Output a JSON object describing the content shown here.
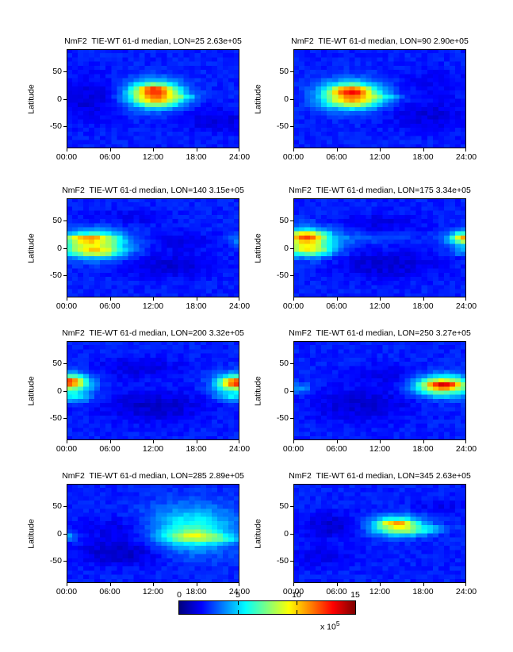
{
  "figure": {
    "background": "#ffffff",
    "colormap": "jet"
  },
  "axes": {
    "ylabel": "Latitude",
    "yticks": [
      {
        "label": "50",
        "lat": 50
      },
      {
        "label": "0",
        "lat": 0
      },
      {
        "label": "-50",
        "lat": -50
      }
    ],
    "xticks": [
      {
        "label": "00:00",
        "hour": 0
      },
      {
        "label": "06:00",
        "hour": 6
      },
      {
        "label": "12:00",
        "hour": 12
      },
      {
        "label": "18:00",
        "hour": 18
      },
      {
        "label": "24:00",
        "hour": 24
      }
    ],
    "xlim_hours": [
      0,
      24
    ],
    "ylim_lat": [
      -90,
      90
    ],
    "grid": false
  },
  "colorbar": {
    "orientation": "horizontal",
    "ticks": [
      {
        "label": "0",
        "value": 0
      },
      {
        "label": "5",
        "value": 5
      },
      {
        "label": "10",
        "value": 10
      },
      {
        "label": "15",
        "value": 15
      }
    ],
    "min": 0,
    "max": 15,
    "multiplier": "x 10",
    "exponent": "5"
  },
  "chart_data": [
    {
      "type": "heatmap",
      "title": "NmF2  TIE-WT 61-d median, LON=25 2.63e+05",
      "lon_deg": 25,
      "title_value": "2.63e+05",
      "x_hours": [
        0,
        24
      ],
      "lat_range": [
        -90,
        90
      ],
      "value_units": "1e5",
      "value_range": [
        0,
        15
      ],
      "base_level": 2.3,
      "blob_format": [
        "amplitude_1e5",
        "center_hour",
        "center_lat",
        "sigma_hour",
        "sigma_lat"
      ],
      "blobs": [
        [
          8.5,
          12.2,
          8,
          2.6,
          16
        ],
        [
          3.5,
          12.2,
          17,
          1.6,
          5
        ],
        [
          1.8,
          12.8,
          -5,
          2.4,
          7
        ],
        [
          1.6,
          16.2,
          4,
          1.6,
          4
        ],
        [
          -1.0,
          3.5,
          0,
          3.0,
          28
        ],
        [
          -0.9,
          20.5,
          -38,
          3.5,
          16
        ]
      ]
    },
    {
      "type": "heatmap",
      "title": "NmF2  TIE-WT 61-d median, LON=90 2.90e+05",
      "lon_deg": 90,
      "title_value": "2.90e+05",
      "x_hours": [
        0,
        24
      ],
      "lat_range": [
        -90,
        90
      ],
      "value_units": "1e5",
      "value_range": [
        0,
        15
      ],
      "base_level": 2.3,
      "blobs": [
        [
          8.5,
          8.0,
          7,
          2.8,
          16
        ],
        [
          3.5,
          8.0,
          15,
          1.8,
          5
        ],
        [
          2.0,
          8.5,
          -7,
          2.6,
          7
        ],
        [
          1.6,
          12.5,
          3,
          2.0,
          4
        ],
        [
          -0.9,
          19.0,
          -30,
          4.0,
          20
        ],
        [
          -0.6,
          20.0,
          30,
          3.5,
          14
        ]
      ]
    },
    {
      "type": "heatmap",
      "title": "NmF2  TIE-WT 61-d median, LON=140 3.15e+05",
      "lon_deg": 140,
      "title_value": "3.15e+05",
      "x_hours": [
        0,
        24
      ],
      "lat_range": [
        -90,
        90
      ],
      "value_units": "1e5",
      "value_range": [
        0,
        15
      ],
      "base_level": 2.3,
      "blobs": [
        [
          7.0,
          3.5,
          6,
          3.2,
          16
        ],
        [
          3.8,
          3.0,
          18,
          2.4,
          4.5
        ],
        [
          3.0,
          4.5,
          -8,
          2.4,
          5
        ],
        [
          1.5,
          24.0,
          15,
          1.0,
          9
        ],
        [
          -1.0,
          14.5,
          -32,
          4.5,
          16
        ],
        [
          -0.8,
          16.0,
          12,
          3.5,
          10
        ],
        [
          -0.6,
          9.0,
          55,
          4.0,
          10
        ]
      ]
    },
    {
      "type": "heatmap",
      "title": "NmF2  TIE-WT 61-d median, LON=175 3.34e+05",
      "lon_deg": 175,
      "title_value": "3.34e+05",
      "x_hours": [
        0,
        24
      ],
      "lat_range": [
        -90,
        90
      ],
      "value_units": "1e5",
      "value_range": [
        0,
        15
      ],
      "base_level": 2.3,
      "blobs": [
        [
          7.0,
          1.8,
          10,
          2.6,
          16
        ],
        [
          4.5,
          1.5,
          22,
          1.8,
          5.5
        ],
        [
          2.8,
          2.8,
          -6,
          2.2,
          5.5
        ],
        [
          6.0,
          23.8,
          17,
          1.6,
          9
        ],
        [
          3.0,
          24.0,
          18,
          1.2,
          5
        ],
        [
          2.0,
          23.8,
          -7,
          1.4,
          5
        ],
        [
          1.0,
          9.5,
          18,
          4.0,
          7
        ],
        [
          -1.1,
          13.0,
          -30,
          5.0,
          18
        ],
        [
          -0.8,
          12.0,
          45,
          4.0,
          12
        ]
      ]
    },
    {
      "type": "heatmap",
      "title": "NmF2  TIE-WT 61-d median, LON=200 3.32e+05",
      "lon_deg": 200,
      "title_value": "3.32e+05",
      "x_hours": [
        0,
        24
      ],
      "lat_range": [
        -90,
        90
      ],
      "value_units": "1e5",
      "value_range": [
        0,
        15
      ],
      "base_level": 2.3,
      "blobs": [
        [
          6.5,
          0.5,
          12,
          2.0,
          13
        ],
        [
          4.5,
          0.3,
          17,
          1.3,
          5.5
        ],
        [
          2.5,
          1.3,
          -13,
          1.6,
          5.5
        ],
        [
          6.5,
          23.5,
          12,
          2.0,
          13
        ],
        [
          4.5,
          23.7,
          15,
          1.4,
          5.5
        ],
        [
          2.0,
          23.0,
          -13,
          1.6,
          5
        ],
        [
          -1.2,
          12.0,
          -28,
          5.0,
          20
        ],
        [
          -0.9,
          10.0,
          42,
          4.0,
          13
        ]
      ]
    },
    {
      "type": "heatmap",
      "title": "NmF2  TIE-WT 61-d median, LON=250 3.27e+05",
      "lon_deg": 250,
      "title_value": "3.27e+05",
      "x_hours": [
        0,
        24
      ],
      "lat_range": [
        -90,
        90
      ],
      "value_units": "1e5",
      "value_range": [
        0,
        15
      ],
      "base_level": 2.3,
      "blobs": [
        [
          8.0,
          20.8,
          9,
          2.6,
          13
        ],
        [
          3.8,
          20.8,
          10,
          1.7,
          4.5
        ],
        [
          1.8,
          0.5,
          4,
          1.4,
          7
        ],
        [
          -1.1,
          9.5,
          -25,
          5.0,
          20
        ],
        [
          -0.7,
          12.5,
          28,
          4.0,
          13
        ]
      ]
    },
    {
      "type": "heatmap",
      "title": "NmF2  TIE-WT 61-d median, LON=285 2.89e+05",
      "lon_deg": 285,
      "title_value": "2.89e+05",
      "x_hours": [
        0,
        24
      ],
      "lat_range": [
        -90,
        90
      ],
      "value_units": "1e5",
      "value_range": [
        0,
        15
      ],
      "base_level": 2.3,
      "blobs": [
        [
          3.8,
          17.5,
          8,
          4.2,
          30
        ],
        [
          3.2,
          17.5,
          -6,
          2.8,
          8
        ],
        [
          1.4,
          21.5,
          -10,
          2.0,
          6
        ],
        [
          1.8,
          0.3,
          -5,
          1.0,
          6
        ],
        [
          -1.4,
          8.0,
          -35,
          4.5,
          16
        ],
        [
          -0.9,
          7.5,
          8,
          3.5,
          14
        ]
      ]
    },
    {
      "type": "heatmap",
      "title": "NmF2  TIE-WT 61-d median, LON=345 2.63e+05",
      "lon_deg": 345,
      "title_value": "2.63e+05",
      "x_hours": [
        0,
        24
      ],
      "lat_range": [
        -90,
        90
      ],
      "value_units": "1e5",
      "value_range": [
        0,
        15
      ],
      "base_level": 2.3,
      "blobs": [
        [
          6.0,
          14.3,
          14,
          2.6,
          12
        ],
        [
          3.2,
          14.3,
          18,
          1.5,
          3.5
        ],
        [
          2.0,
          16.5,
          4,
          2.2,
          6
        ],
        [
          1.2,
          19.5,
          8,
          1.8,
          4
        ],
        [
          -1.1,
          5.5,
          14,
          3.2,
          16
        ],
        [
          -0.7,
          3.5,
          -42,
          3.5,
          13
        ],
        [
          -0.6,
          21.0,
          50,
          3.0,
          10
        ]
      ]
    }
  ]
}
